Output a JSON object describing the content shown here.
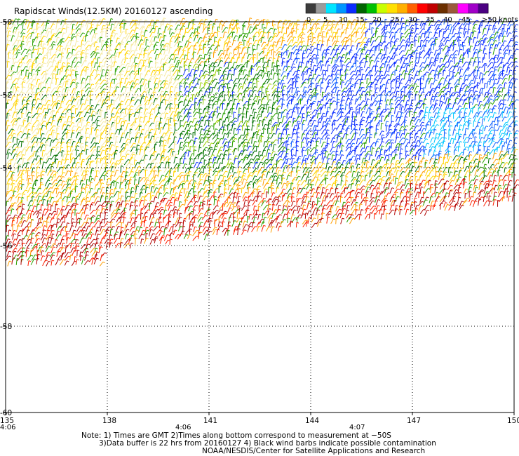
{
  "title": "Rapidscat Winds(12.5KM) 20160127 ascending",
  "colorbar": {
    "colors": [
      "#3c3c3c",
      "#9b9b9b",
      "#00e5ff",
      "#0096ff",
      "#0b2cff",
      "#006400",
      "#00c000",
      "#c8ff00",
      "#ffe000",
      "#ffb000",
      "#ff6000",
      "#ff0000",
      "#c00000",
      "#6b2f00",
      "#9b5a3c",
      "#ff00ff",
      "#a000c8",
      "#4b0082"
    ],
    "labels": [
      "0",
      "5",
      "10",
      "15",
      "20",
      "25",
      "30",
      "35",
      "40",
      "45",
      ">50 knots"
    ]
  },
  "axes": {
    "lon_labels": [
      "135",
      "138",
      "141",
      "144",
      "147",
      "150"
    ],
    "lat_labels": [
      "-50",
      "-52",
      "-54",
      "-56",
      "-58",
      "-60"
    ]
  },
  "times": [
    "4:06",
    "4:06",
    "4:07"
  ],
  "notes": [
    "Note: 1) Times are GMT 2)Times along bottom correspond to measurement at −50S",
    "3)Data buffer is 22 hrs from 20160127 4) Black wind barbs indicate possible contamination",
    "NOAA/NESDIS/Center for Satellite Applications and Research"
  ]
}
